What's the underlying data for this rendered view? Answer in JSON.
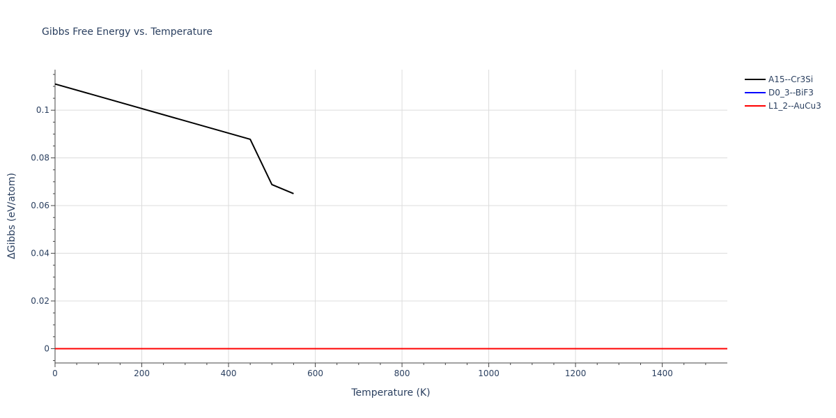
{
  "chart_data": {
    "type": "line",
    "title": "Gibbs Free Energy vs. Temperature",
    "xlabel": "Temperature (K)",
    "ylabel": "ΔGibbs (eV/atom)",
    "xlim": [
      0,
      1550
    ],
    "ylim": [
      -0.006,
      0.117
    ],
    "x_ticks": [
      0,
      200,
      400,
      600,
      800,
      1000,
      1200,
      1400
    ],
    "x_tick_labels": [
      "0",
      "200",
      "400",
      "600",
      "800",
      "1000",
      "1200",
      "1400"
    ],
    "y_ticks": [
      0,
      0.02,
      0.04,
      0.06,
      0.08,
      0.1
    ],
    "y_tick_labels": [
      "0",
      "0.02",
      "0.04",
      "0.06",
      "0.08",
      "0.1"
    ],
    "grid": true,
    "legend_position": "top-right",
    "series": [
      {
        "name": "A15--Cr3Si",
        "color": "#000000",
        "x": [
          0,
          450,
          500,
          550
        ],
        "y": [
          0.111,
          0.0878,
          0.0688,
          0.065
        ]
      },
      {
        "name": "D0_3--BiF3",
        "color": "#0000ff",
        "x": [
          0,
          1550
        ],
        "y": [
          0,
          0
        ]
      },
      {
        "name": "L1_2--AuCu3",
        "color": "#ff0000",
        "x": [
          0,
          1550
        ],
        "y": [
          0,
          0
        ]
      }
    ]
  }
}
